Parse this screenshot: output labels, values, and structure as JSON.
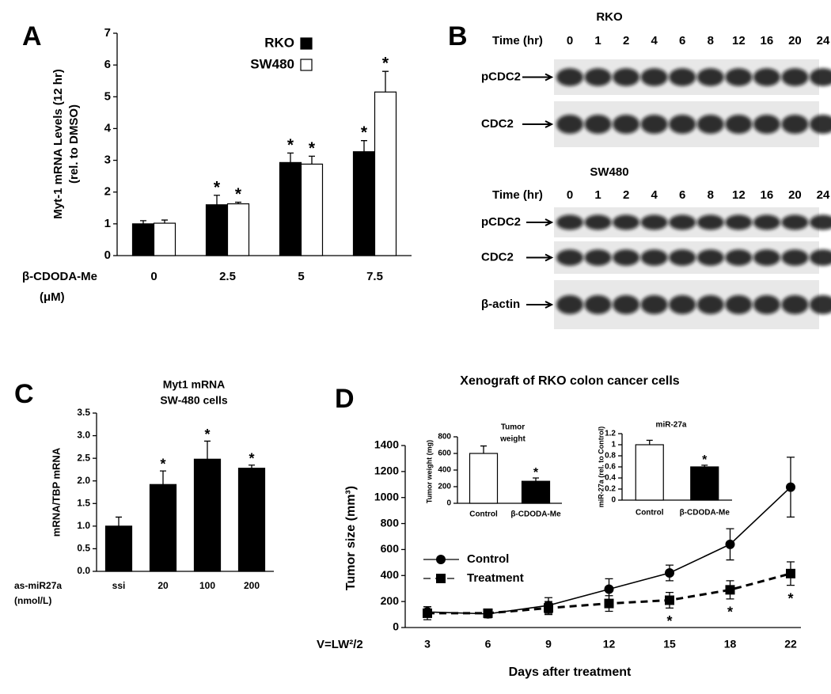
{
  "chart_data": [
    {
      "panel": "A",
      "type": "bar",
      "ylabel": [
        "Myt-1 mRNA Levels (12 hr)",
        "(rel. to DMSO)"
      ],
      "xlabel": [
        "β-CDODA-Me",
        "(μM)"
      ],
      "categories": [
        "0",
        "2.5",
        "5",
        "7.5"
      ],
      "series": [
        {
          "name": "RKO",
          "color": "#000000",
          "values": [
            1.0,
            1.6,
            2.93,
            3.27
          ],
          "errors": [
            0.1,
            0.3,
            0.3,
            0.35
          ],
          "significance": [
            null,
            "*",
            "*",
            "*"
          ]
        },
        {
          "name": "SW480",
          "color": "#ffffff",
          "values": [
            1.02,
            1.63,
            2.88,
            5.15
          ],
          "errors": [
            0.1,
            0.05,
            0.25,
            0.65
          ],
          "significance": [
            null,
            "*",
            "*",
            "*"
          ]
        }
      ],
      "ylim": [
        0,
        7
      ],
      "yticks": [
        0,
        1,
        2,
        3,
        4,
        5,
        6,
        7
      ]
    },
    {
      "panel": "C",
      "type": "bar",
      "title": [
        "Myt1 mRNA",
        "SW-480 cells"
      ],
      "ylabel": [
        "mRNA/TBP mRNA"
      ],
      "xlabel": [
        "as-miR27a",
        "(nmol/L)"
      ],
      "categories": [
        "ssi",
        "20",
        "100",
        "200"
      ],
      "color": "#000000",
      "values": [
        1.0,
        1.92,
        2.48,
        2.28
      ],
      "errors": [
        0.2,
        0.3,
        0.4,
        0.07
      ],
      "significance": [
        null,
        "*",
        "*",
        "*"
      ],
      "ylim": [
        0,
        3.5
      ],
      "yticks": [
        {
          "value": 0,
          "label": "0.0"
        },
        {
          "value": 0.5,
          "label": "0.5"
        },
        {
          "value": 1,
          "label": "1.0"
        },
        {
          "value": 1.5,
          "label": "1.5"
        },
        {
          "value": 2,
          "label": "2.0"
        },
        {
          "value": 2.5,
          "label": "2.5"
        },
        {
          "value": 3,
          "label": "3.0"
        },
        {
          "value": 3.5,
          "label": "3.5"
        }
      ]
    },
    {
      "panel": "D",
      "type": "line",
      "title": [
        "Xenograft of RKO colon cancer cells"
      ],
      "ylabel": [
        "Tumor size (mm³)"
      ],
      "xlabel": [
        "Days after treatment"
      ],
      "annotation": "V=LW²/2",
      "categories": [
        "3",
        "6",
        "9",
        "12",
        "15",
        "18",
        "22"
      ],
      "series": [
        {
          "name": "Control",
          "color": "#000000",
          "marker": "circle",
          "dashed": false,
          "values": [
            120,
            105,
            170,
            295,
            420,
            640,
            1080
          ],
          "errors": [
            40,
            30,
            60,
            80,
            60,
            120,
            230
          ]
        },
        {
          "name": "Treatment",
          "color": "#000000",
          "marker": "square",
          "dashed": true,
          "values": [
            110,
            110,
            150,
            185,
            210,
            290,
            415
          ],
          "errors": [
            50,
            30,
            50,
            60,
            60,
            70,
            90
          ],
          "significance": [
            null,
            null,
            null,
            null,
            "*",
            "*",
            "*"
          ]
        }
      ],
      "ylim": [
        0,
        1400
      ],
      "yticks": [
        0,
        200,
        400,
        600,
        800,
        1000,
        1200,
        1400
      ]
    },
    {
      "type": "bar",
      "title": [
        "Tumor",
        "weight"
      ],
      "ylabel": [
        "Tumor weight  (mg)"
      ],
      "categories": [
        "Control",
        "β-CDODA-Me"
      ],
      "colors": [
        "#ffffff",
        "#000000"
      ],
      "values": [
        600,
        265
      ],
      "errors": [
        90,
        40
      ],
      "significance": [
        null,
        "*"
      ],
      "ylim": [
        0,
        800
      ],
      "yticks": [
        0,
        200,
        400,
        600,
        800
      ]
    },
    {
      "type": "bar",
      "title": [
        "miR-27a"
      ],
      "ylabel": [
        "miR-27a (rel. to Control)"
      ],
      "categories": [
        "Control",
        "β-CDODA-Me"
      ],
      "colors": [
        "#ffffff",
        "#000000"
      ],
      "values": [
        1.0,
        0.6
      ],
      "errors": [
        0.08,
        0.03
      ],
      "significance": [
        null,
        "*"
      ],
      "ylim": [
        0,
        1.2
      ],
      "yticks": [
        0,
        0.2,
        0.4,
        0.6,
        0.8,
        1,
        1.2
      ]
    }
  ],
  "blot": {
    "panel": "B",
    "time_label": "Time (hr)",
    "groups": [
      {
        "name": "RKO",
        "times": [
          "0",
          "1",
          "2",
          "4",
          "6",
          "8",
          "12",
          "16",
          "20",
          "24"
        ],
        "rows": [
          "pCDC2",
          "CDC2"
        ]
      },
      {
        "name": "SW480",
        "times": [
          "0",
          "1",
          "2",
          "4",
          "6",
          "8",
          "12",
          "16",
          "20",
          "24"
        ],
        "rows": [
          "pCDC2",
          "CDC2",
          "β-actin"
        ]
      }
    ]
  }
}
